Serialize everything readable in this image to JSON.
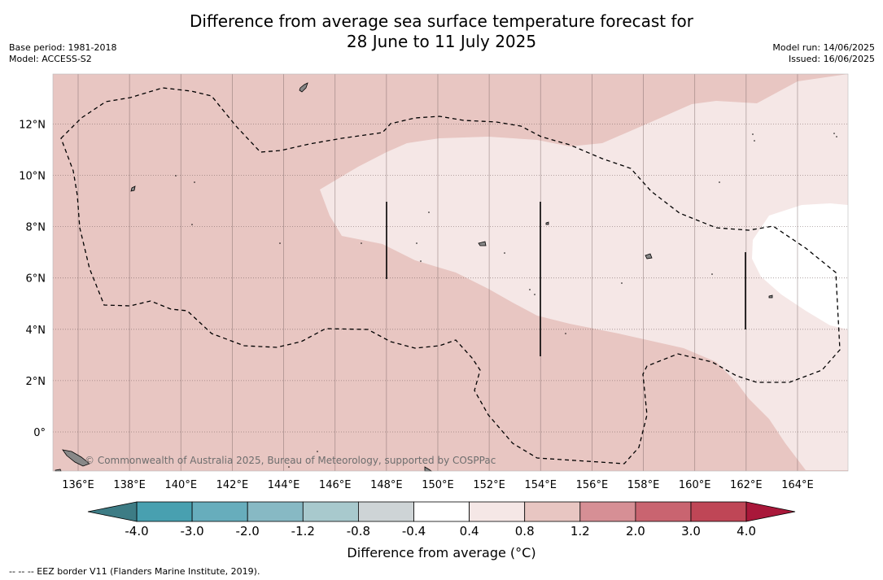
{
  "title": {
    "line1": "Difference from average sea surface temperature forecast for",
    "line2": "28 June to 11 July 2025"
  },
  "meta_left": {
    "base_period": "Base period: 1981-2018",
    "model": "Model: ACCESS-S2"
  },
  "meta_right": {
    "model_run": "Model run: 14/06/2025",
    "issued": "Issued: 16/06/2025"
  },
  "map": {
    "lon_range": [
      135,
      166
    ],
    "lat_range": [
      -1.5,
      14
    ],
    "lon_ticks": [
      {
        "value": 136,
        "label": "136°E"
      },
      {
        "value": 138,
        "label": "138°E"
      },
      {
        "value": 140,
        "label": "140°E"
      },
      {
        "value": 142,
        "label": "142°E"
      },
      {
        "value": 144,
        "label": "144°E"
      },
      {
        "value": 146,
        "label": "146°E"
      },
      {
        "value": 148,
        "label": "148°E"
      },
      {
        "value": 150,
        "label": "150°E"
      },
      {
        "value": 152,
        "label": "152°E"
      },
      {
        "value": 154,
        "label": "154°E"
      },
      {
        "value": 156,
        "label": "156°E"
      },
      {
        "value": 158,
        "label": "158°E"
      },
      {
        "value": 160,
        "label": "160°E"
      },
      {
        "value": 162,
        "label": "162°E"
      },
      {
        "value": 164,
        "label": "164°E"
      }
    ],
    "lat_ticks": [
      {
        "value": 0,
        "label": "0°"
      },
      {
        "value": 2,
        "label": "2°N"
      },
      {
        "value": 4,
        "label": "4°N"
      },
      {
        "value": 6,
        "label": "6°N"
      },
      {
        "value": 8,
        "label": "8°N"
      },
      {
        "value": 10,
        "label": "10°N"
      },
      {
        "value": 12,
        "label": "12°N"
      }
    ],
    "colors": {
      "band_0_8_1_2": "#e8c6c2",
      "band_0_4_0_8": "#f5e7e6",
      "band_neutral": "#ffffff",
      "land": "#888888"
    },
    "copyright": "© Commonwealth of Australia 2025, Bureau of Meteorology, supported by COSPPac"
  },
  "colorbar": {
    "labels": [
      "-4.0",
      "-3.0",
      "-2.0",
      "-1.2",
      "-0.8",
      "-0.4",
      "0.4",
      "0.8",
      "1.2",
      "2.0",
      "3.0",
      "4.0"
    ],
    "colors": [
      "#48a0b0",
      "#67adbc",
      "#87b9c4",
      "#a8c9cd",
      "#ced4d6",
      "#ffffff",
      "#f5e7e6",
      "#e8c6c2",
      "#d68f95",
      "#c96470",
      "#bf4656"
    ],
    "low_extend_color": "#3d7c85",
    "high_extend_color": "#a9183a",
    "label": "Difference from average (°C)"
  },
  "footnote": "--  --  -- EEZ border V11 (Flanders Marine Institute, 2019)."
}
